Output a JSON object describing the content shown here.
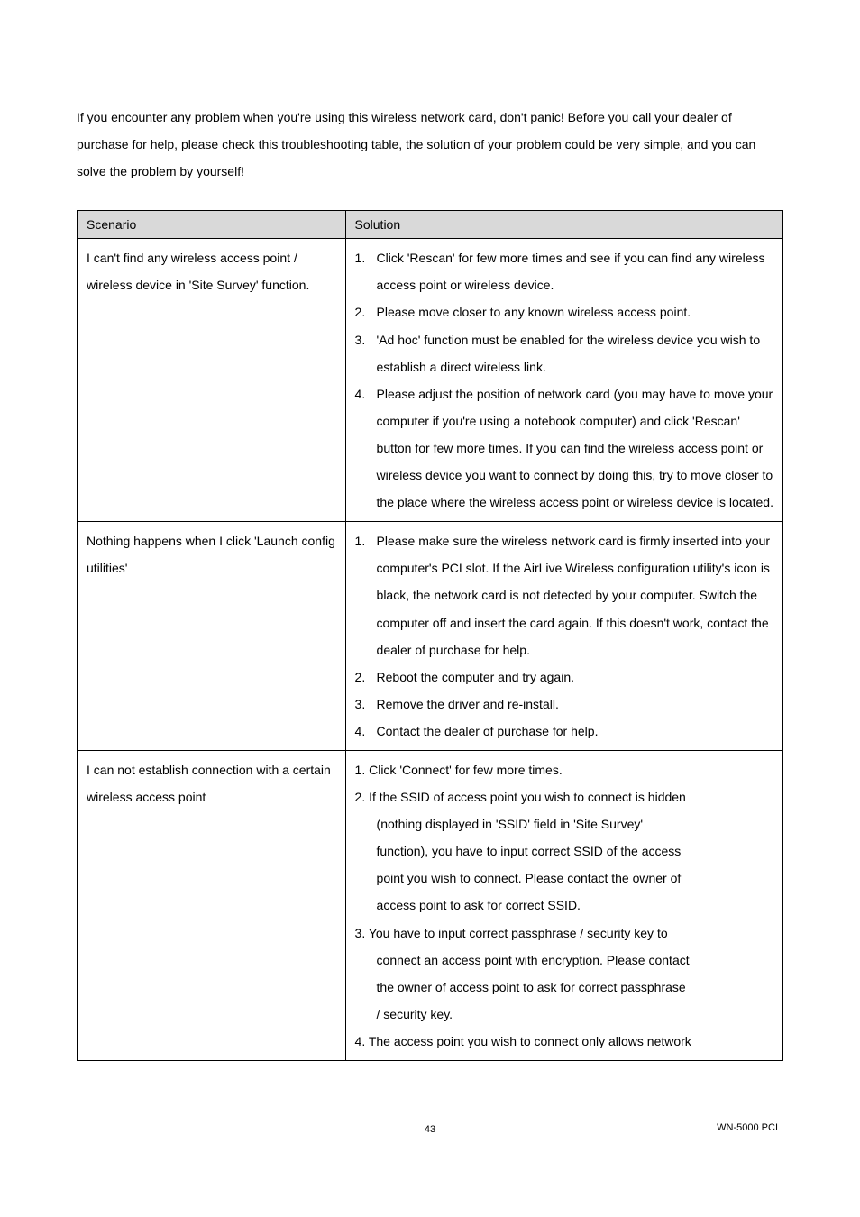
{
  "intro": {
    "p1": "If you encounter any problem when you're using this wireless network card, don't panic! Before you call your dealer of purchase for help, please check this troubleshooting table, the solution of your problem could be very simple, and you can solve the problem by yourself!"
  },
  "table": {
    "header": {
      "scenario": "Scenario",
      "solution": "Solution"
    },
    "rows": [
      {
        "scenario": "I can't find any wireless access point / wireless device in 'Site Survey' function.",
        "solution_type": "ol",
        "items": [
          {
            "n": "1.",
            "t": "Click 'Rescan' for few more times and see if you can find any wireless access point or wireless device."
          },
          {
            "n": "2.",
            "t": "Please move closer to any known wireless access point."
          },
          {
            "n": "3.",
            "t": "'Ad hoc' function must be enabled for the wireless device you wish to establish a direct wireless link."
          },
          {
            "n": "4.",
            "t": "Please adjust the position of network card (you may have to move your computer if you're using a notebook computer) and click 'Rescan' button for few more times. If you can find the wireless access point or wireless device you want to connect by doing this, try to move closer to the place where the wireless access point or wireless device is located."
          }
        ]
      },
      {
        "scenario": "Nothing happens when I click 'Launch config utilities'",
        "solution_type": "ol",
        "items": [
          {
            "n": "1.",
            "t": "Please make sure the wireless network card is firmly inserted into your computer's PCI slot. If the AirLive Wireless configuration utility's icon is black, the network card is not detected by your computer. Switch the computer off and insert the card again. If this doesn't work, contact the dealer of purchase for help."
          },
          {
            "n": "2.",
            "t": "Reboot the computer and try again."
          },
          {
            "n": "3.",
            "t": "Remove the driver and re-install."
          },
          {
            "n": "4.",
            "t": "Contact the dealer of purchase for help."
          }
        ]
      },
      {
        "scenario": "I can not establish connection with a certain wireless access point",
        "solution_type": "plain",
        "lines": [
          {
            "indent": false,
            "t": "1. Click 'Connect' for few more times."
          },
          {
            "indent": false,
            "t": "2. If the SSID of access point you wish to connect is hidden"
          },
          {
            "indent": true,
            "t": "(nothing displayed in 'SSID' field in 'Site Survey'"
          },
          {
            "indent": true,
            "t": "function), you have to input correct SSID of the access"
          },
          {
            "indent": true,
            "t": "point you wish to connect. Please contact the owner of"
          },
          {
            "indent": true,
            "t": "access point to ask for correct SSID."
          },
          {
            "indent": false,
            "t": "3. You have to input correct passphrase / security key to"
          },
          {
            "indent": true,
            "t": "connect an access point with encryption. Please contact"
          },
          {
            "indent": true,
            "t": "the owner of access point to ask for correct passphrase"
          },
          {
            "indent": true,
            "t": "/ security key."
          },
          {
            "indent": false,
            "t": "4. The access point you wish to connect only allows network"
          }
        ]
      }
    ]
  },
  "footer": {
    "page": "43",
    "model": "WN-5000 PCI"
  },
  "colors": {
    "header_bg": "#d9d9d9",
    "border": "#000000",
    "text": "#000000",
    "bg": "#ffffff"
  }
}
